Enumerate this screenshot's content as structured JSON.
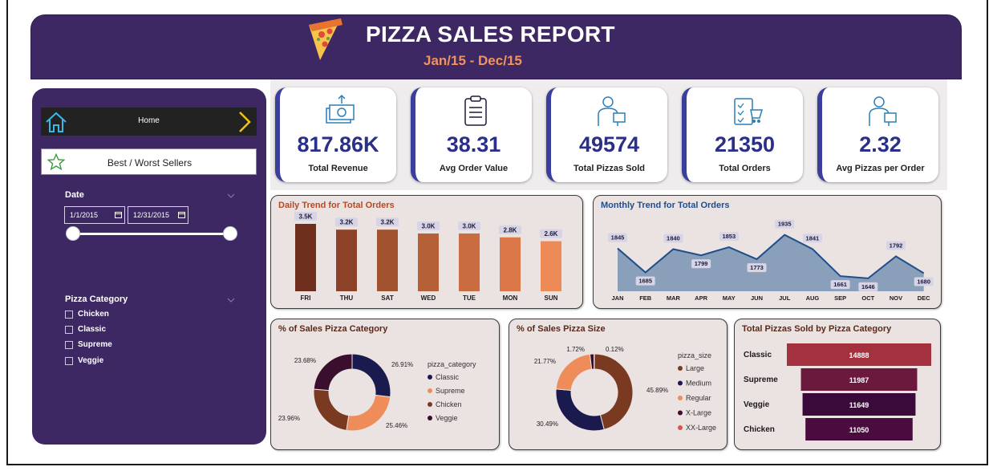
{
  "header": {
    "title": "PIZZA SALES REPORT",
    "subtitle": "Jan/15 - Dec/15"
  },
  "nav": {
    "home_label": "Home",
    "best_worst_label": "Best / Worst Sellers"
  },
  "filters": {
    "date_label": "Date",
    "date_start": "1/1/2015",
    "date_end": "12/31/2015",
    "category_label": "Pizza Category",
    "categories": [
      "Chicken",
      "Classic",
      "Supreme",
      "Veggie"
    ]
  },
  "kpis": [
    {
      "value": "817.86K",
      "label": "Total Revenue",
      "icon": "money-icon"
    },
    {
      "value": "38.31",
      "label": "Avg Order Value",
      "icon": "clipboard-icon"
    },
    {
      "value": "49574",
      "label": "Total Pizzas Sold",
      "icon": "delivery-icon"
    },
    {
      "value": "21350",
      "label": "Total Orders",
      "icon": "order-list-icon"
    },
    {
      "value": "2.32",
      "label": "Avg Pizzas per Order",
      "icon": "delivery-icon"
    }
  ],
  "colors": {
    "header_bg": "#3d2863",
    "kpi_value": "#2a2f87",
    "accent_orange": "#f1935e",
    "monthly_fill": "#8aa0ba",
    "monthly_line": "#1f4e8c"
  },
  "chart_data": [
    {
      "type": "bar",
      "title": "Daily Trend for Total Orders",
      "categories": [
        "FRI",
        "THU",
        "SAT",
        "WED",
        "TUE",
        "MON",
        "SUN"
      ],
      "values": [
        3500,
        3200,
        3200,
        3000,
        3000,
        2800,
        2600
      ],
      "data_labels": [
        "3.5K",
        "3.2K",
        "3.2K",
        "3.0K",
        "3.0K",
        "2.8K",
        "2.6K"
      ],
      "colors": [
        "#6e2f1c",
        "#8d4126",
        "#a0532e",
        "#b66037",
        "#c96c3f",
        "#dc774a",
        "#ec8a58"
      ]
    },
    {
      "type": "area",
      "title": "Monthly Trend for Total Orders",
      "categories": [
        "JAN",
        "FEB",
        "MAR",
        "APR",
        "MAY",
        "JUN",
        "JUL",
        "AUG",
        "SEP",
        "OCT",
        "NOV",
        "DEC"
      ],
      "values": [
        1845,
        1685,
        1840,
        1799,
        1853,
        1773,
        1935,
        1841,
        1661,
        1646,
        1792,
        1680
      ]
    },
    {
      "type": "pie",
      "title": "% of Sales Pizza Category",
      "legend_title": "pizza_category",
      "labels": [
        "Classic",
        "Supreme",
        "Chicken",
        "Veggie"
      ],
      "values": [
        26.91,
        25.46,
        23.96,
        23.68
      ],
      "value_labels": [
        "26.91%",
        "25.46%",
        "23.96%",
        "23.68%"
      ],
      "colors": [
        "#1a1a4e",
        "#ee8c5a",
        "#7a3a22",
        "#3a0f2e"
      ]
    },
    {
      "type": "pie",
      "title": "% of Sales Pizza Size",
      "legend_title": "pizza_size",
      "labels": [
        "Large",
        "Medium",
        "Regular",
        "X-Large",
        "XX-Large"
      ],
      "values": [
        45.89,
        30.49,
        21.77,
        1.72,
        0.12
      ],
      "value_labels": [
        "45.89%",
        "30.49%",
        "21.77%",
        "1.72%",
        "0.12%"
      ],
      "colors": [
        "#7a3a22",
        "#1a1a4e",
        "#ee8c5a",
        "#3a0f2e",
        "#d9534f"
      ]
    },
    {
      "type": "bar",
      "title": "Total Pizzas Sold by Pizza Category",
      "categories": [
        "Classic",
        "Supreme",
        "Veggie",
        "Chicken"
      ],
      "values": [
        14888,
        11987,
        11649,
        11050
      ],
      "colors": [
        "#a4323e",
        "#6b1a3e",
        "#3a0a3a",
        "#4a0c3e"
      ]
    }
  ]
}
